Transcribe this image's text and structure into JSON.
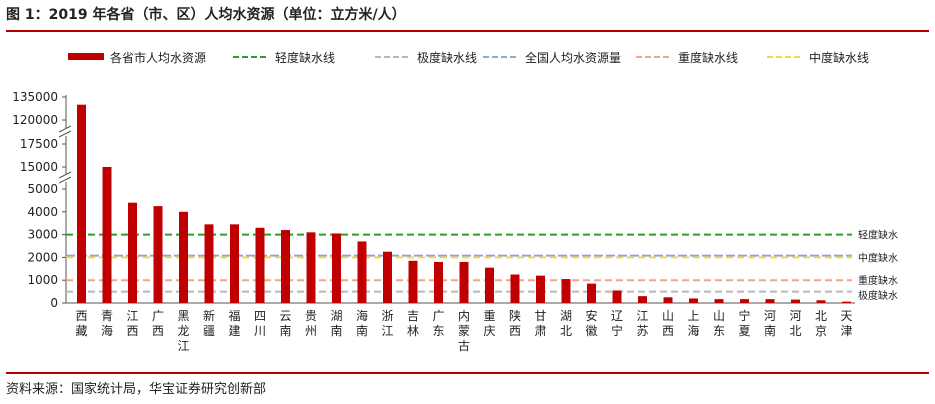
{
  "figure": {
    "title": "图 1：2019 年各省（市、区）人均水资源（单位：立方米/人）",
    "source": "资料来源：国家统计局，华宝证券研究创新部"
  },
  "chart_data": {
    "type": "bar",
    "title": "图 1：2019 年各省（市、区）人均水资源（单位：立方米/人）",
    "unit": "立方米/人",
    "categories": [
      "西藏",
      "青海",
      "江西",
      "广西",
      "黑龙江",
      "新疆",
      "福建",
      "四川",
      "云南",
      "贵州",
      "湖南",
      "海南",
      "浙江",
      "吉林",
      "广东",
      "内蒙古",
      "重庆",
      "陕西",
      "甘肃",
      "湖北",
      "安徽",
      "辽宁",
      "江苏",
      "山西",
      "上海",
      "山东",
      "宁夏",
      "河南",
      "河北",
      "北京",
      "天津"
    ],
    "series": [
      {
        "name": "各省市人均水资源",
        "color": "#c00000",
        "values": [
          130000,
          15000,
          4400,
          4250,
          4000,
          3450,
          3450,
          3300,
          3200,
          3100,
          3050,
          2700,
          2250,
          1850,
          1800,
          1800,
          1550,
          1250,
          1200,
          1050,
          850,
          550,
          300,
          250,
          200,
          170,
          170,
          170,
          150,
          120,
          60
        ]
      }
    ],
    "reference_lines": [
      {
        "name": "轻度缺水线",
        "value": 3000,
        "color": "#2e9e2e",
        "label": "轻度缺水"
      },
      {
        "name": "极度缺水线",
        "value": 500,
        "color": "#b8b8b8",
        "label": "极度缺水"
      },
      {
        "name": "全国人均水资源量",
        "value": 2077,
        "color": "#8fa8d8"
      },
      {
        "name": "重度缺水线",
        "value": 1000,
        "color": "#f4a582",
        "label": "重度缺水"
      },
      {
        "name": "中度缺水线",
        "value": 2000,
        "color": "#f2d45c",
        "label": "中度缺水"
      }
    ],
    "y_ticks": [
      "0",
      "1000",
      "2000",
      "3000",
      "4000",
      "5000",
      "15000",
      "17500",
      "120000",
      "135000"
    ],
    "y_axis_breaks": true,
    "legend_position": "top",
    "grid": false
  }
}
